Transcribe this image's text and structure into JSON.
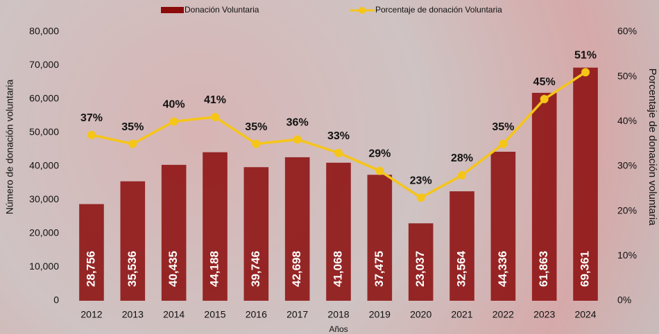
{
  "chart_data": {
    "type": "combo",
    "x_label": "Años",
    "y_label": "Número de donación voluntaria",
    "y2_label": "Porcentaje de donación voluntaria",
    "categories": [
      "2012",
      "2013",
      "2014",
      "2015",
      "2016",
      "2017",
      "2018",
      "2019",
      "2020",
      "2021",
      "2022",
      "2023",
      "2024"
    ],
    "series": [
      {
        "name": "Donación Voluntaria",
        "type": "bar",
        "color": "#8b0a0a",
        "values": [
          28756,
          35536,
          40435,
          44188,
          39746,
          42698,
          41068,
          37475,
          23037,
          32564,
          44336,
          61863,
          69361
        ],
        "value_labels": [
          "28,756",
          "35,536",
          "40,435",
          "44,188",
          "39,746",
          "42,698",
          "41,068",
          "37,475",
          "23,037",
          "32,564",
          "44,336",
          "61,863",
          "69,361"
        ]
      },
      {
        "name": "Porcentaje de donación Voluntaria",
        "type": "line",
        "axis": "y2",
        "color": "#f5c518",
        "values": [
          37,
          35,
          40,
          41,
          35,
          36,
          33,
          29,
          23,
          28,
          35,
          45,
          51
        ],
        "value_labels": [
          "37%",
          "35%",
          "40%",
          "41%",
          "35%",
          "36%",
          "33%",
          "29%",
          "23%",
          "28%",
          "35%",
          "45%",
          "51%"
        ]
      }
    ],
    "ylim": [
      0,
      80000
    ],
    "yticks": [
      0,
      {
        "value": 10000,
        "label": "10,000"
      },
      {
        "value": 20000,
        "label": "20,000"
      },
      {
        "value": 30000,
        "label": "30,000"
      },
      {
        "value": 40000,
        "label": "40,000"
      },
      {
        "value": 50000,
        "label": "50,000"
      },
      {
        "value": 60000,
        "label": "60,000"
      },
      {
        "value": 70000,
        "label": "70,000"
      },
      {
        "value": 80000,
        "label": "80,000"
      }
    ],
    "y2lim": [
      0,
      60
    ],
    "y2ticks": [
      {
        "value": 0,
        "label": "0%"
      },
      {
        "value": 10,
        "label": "10%"
      },
      {
        "value": 20,
        "label": "20%"
      },
      {
        "value": 30,
        "label": "30%"
      },
      {
        "value": 40,
        "label": "40%"
      },
      {
        "value": 50,
        "label": "50%"
      },
      {
        "value": 60,
        "label": "60%"
      }
    ],
    "legend": "top"
  }
}
